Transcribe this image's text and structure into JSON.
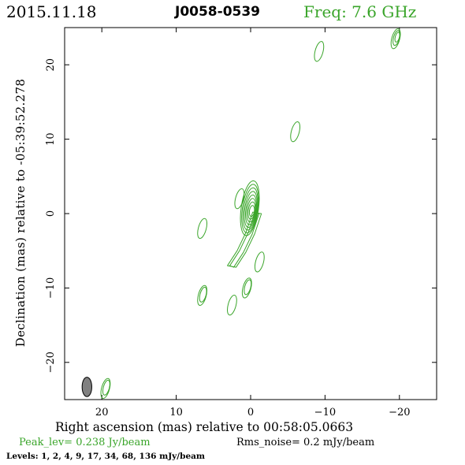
{
  "header": {
    "date": "2015.11.18",
    "source": "J0058-0539",
    "frequency": "Freq: 7.6 GHz",
    "frequency_color": "#3aa52a"
  },
  "axes": {
    "xlabel": "Right ascension (mas) relative to 00:58:05.0663",
    "ylabel": "Declination (mas) relative to -05:39:52.278"
  },
  "footer": {
    "peak": "Peak_lev=  0.238 Jy/beam",
    "peak_color": "#3aa52a",
    "rms": "Rms_noise=  0.2 mJy/beam",
    "levels": "Levels:  1,  2,  4,  9,  17,  34,  68, 136 mJy/beam"
  },
  "chart_data": {
    "type": "contour",
    "xlim": [
      25,
      -25
    ],
    "ylim": [
      -25,
      25
    ],
    "xticks": [
      20,
      10,
      0,
      -10,
      -20
    ],
    "xtick_labels": [
      "20",
      "10",
      "0",
      "−10",
      "−20"
    ],
    "yticks": [
      20,
      10,
      0,
      -10,
      -20
    ],
    "ytick_labels": [
      "20",
      "10",
      "0",
      "−10",
      "−20"
    ],
    "contour_color": "#3aa52a",
    "levels_mJy": [
      1,
      2,
      4,
      9,
      17,
      34,
      68,
      136
    ],
    "peak_Jy_per_beam": 0.238,
    "rms_mJy_per_beam": 0.2,
    "beam": {
      "x": 22,
      "y": -23.3,
      "major": 2.6,
      "minor": 1.3,
      "pa_deg": 0,
      "fill": "#808080"
    },
    "core": {
      "x": 0,
      "y": 0.3,
      "levels": 8
    },
    "components": [
      {
        "name": "core-ridge",
        "points": [
          [
            -0.6,
            0.2
          ],
          [
            0.3,
            -2.5
          ],
          [
            1.5,
            -5
          ],
          [
            2.8,
            -7
          ]
        ],
        "levels": 2
      },
      {
        "name": "blob-upper-left",
        "x": 1.5,
        "y": 2.0,
        "levels": 1
      },
      {
        "name": "blob-knot-right",
        "x": -1.2,
        "y": -6.5,
        "levels": 1
      },
      {
        "name": "blob-mid-lower",
        "x": 0.5,
        "y": -10.0,
        "levels": 2
      },
      {
        "name": "blob-left-small",
        "x": 6.5,
        "y": -2.0,
        "levels": 1
      },
      {
        "name": "blob-jet-left",
        "x": 6.5,
        "y": -11.0,
        "levels": 2
      },
      {
        "name": "blob-lower-small",
        "x": 2.5,
        "y": -12.3,
        "levels": 1
      },
      {
        "name": "blob-bottom-left",
        "x": 19.5,
        "y": -23.5,
        "levels": 2
      },
      {
        "name": "blob-right-mid",
        "x": -6.0,
        "y": 11.0,
        "levels": 1
      },
      {
        "name": "blob-right-upper",
        "x": -9.2,
        "y": 21.8,
        "levels": 1
      },
      {
        "name": "blob-top-right",
        "x": -19.5,
        "y": 23.5,
        "levels": 3
      }
    ]
  }
}
